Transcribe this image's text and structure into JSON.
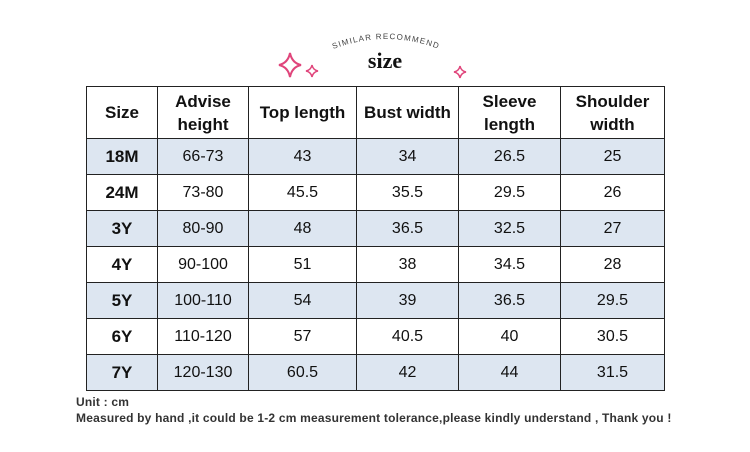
{
  "header": {
    "subtitle": "SIMILAR RECOMMEND",
    "title": "size"
  },
  "table": {
    "columns": [
      "Size",
      "Advise height",
      "Top length",
      "Bust width",
      "Sleeve length",
      "Shoulder width"
    ],
    "rows": [
      [
        "18M",
        "66-73",
        "43",
        "34",
        "26.5",
        "25"
      ],
      [
        "24M",
        "73-80",
        "45.5",
        "35.5",
        "29.5",
        "26"
      ],
      [
        "3Y",
        "80-90",
        "48",
        "36.5",
        "32.5",
        "27"
      ],
      [
        "4Y",
        "90-100",
        "51",
        "38",
        "34.5",
        "28"
      ],
      [
        "5Y",
        "100-110",
        "54",
        "39",
        "36.5",
        "29.5"
      ],
      [
        "6Y",
        "110-120",
        "57",
        "40.5",
        "40",
        "30.5"
      ],
      [
        "7Y",
        "120-130",
        "60.5",
        "42",
        "44",
        "31.5"
      ]
    ]
  },
  "footer": {
    "unit": "Unit : cm",
    "note": "Measured by hand ,it could be 1-2 cm measurement tolerance,please kindly understand , Thank you !"
  }
}
